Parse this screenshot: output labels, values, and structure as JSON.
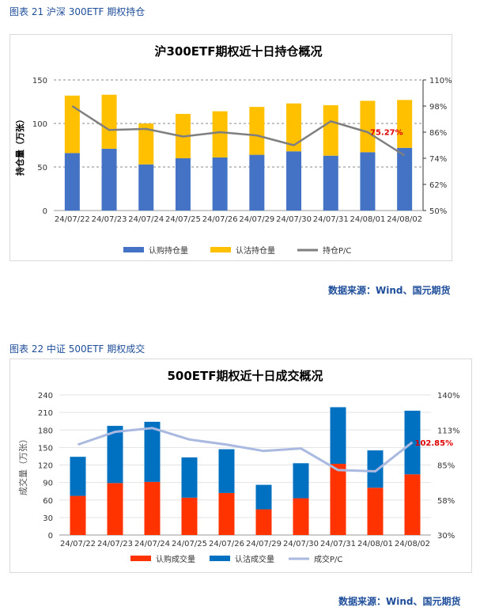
{
  "figure1": {
    "caption": "图表 21  沪深 300ETF 期权持仓",
    "source": "数据来源：Wind、国元期货"
  },
  "figure2": {
    "caption": "图表 22  中证 500ETF 期权成交",
    "source": "数据来源：Wind、国元期货"
  },
  "chart_data": [
    {
      "type": "bar",
      "stacked": true,
      "title": "沪300ETF期权近十日持仓概况",
      "ylabel": "持仓量（万张）",
      "categories": [
        "24/07/22",
        "24/07/23",
        "24/07/24",
        "24/07/25",
        "24/07/26",
        "24/07/29",
        "24/07/30",
        "24/07/31",
        "24/08/01",
        "24/08/02"
      ],
      "series": [
        {
          "name": "认购持仓量",
          "values": [
            66,
            71,
            53,
            60,
            61,
            64,
            68,
            63,
            67,
            72
          ],
          "color": "#4472c4"
        },
        {
          "name": "认沽持仓量",
          "values": [
            66,
            62,
            47,
            51,
            53,
            55,
            55,
            58,
            59,
            55
          ],
          "color": "#ffc000"
        }
      ],
      "line": {
        "name": "持仓P/C",
        "values": [
          98,
          87,
          87.5,
          84,
          86,
          84.5,
          80,
          91,
          86,
          75.27
        ],
        "color": "#7f7f7f"
      },
      "ylim": [
        0,
        150
      ],
      "yticks": [
        0,
        50,
        100,
        150
      ],
      "y2lim": [
        50,
        110
      ],
      "y2ticks": [
        "50%",
        "62%",
        "74%",
        "86%",
        "98%",
        "110%"
      ],
      "annotation": "75.27%",
      "grid": true,
      "legend": "bottom"
    },
    {
      "type": "bar",
      "stacked": true,
      "title": "500ETF期权近十日成交概况",
      "ylabel": "成交量（万张）",
      "categories": [
        "24/07/22",
        "24/07/23",
        "24/07/24",
        "24/07/25",
        "24/07/26",
        "24/07/29",
        "24/07/30",
        "24/07/31",
        "24/08/01",
        "24/08/02"
      ],
      "series": [
        {
          "name": "认购成交量",
          "values": [
            67,
            89,
            91,
            64,
            72,
            44,
            63,
            122,
            81,
            104
          ],
          "color": "#ff3300"
        },
        {
          "name": "认沽成交量",
          "values": [
            67,
            98,
            103,
            69,
            75,
            42,
            60,
            97,
            64,
            109
          ],
          "color": "#0070c0"
        }
      ],
      "line": {
        "name": "成交P/C",
        "values": [
          101,
          111,
          114,
          105,
          101,
          96,
          98,
          81,
          80,
          102.85
        ],
        "color": "#a9b9e0"
      },
      "ylim": [
        0,
        240
      ],
      "yticks": [
        0,
        30,
        60,
        90,
        120,
        150,
        180,
        210,
        240
      ],
      "y2lim": [
        30,
        140
      ],
      "y2ticks": [
        "30%",
        "58%",
        "85%",
        "113%",
        "140%"
      ],
      "annotation": "102.85%",
      "grid": true,
      "legend": "bottom"
    }
  ]
}
